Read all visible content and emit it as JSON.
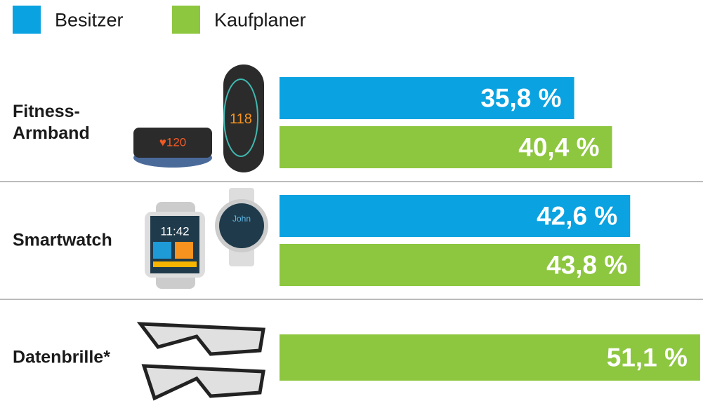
{
  "chart_data": {
    "type": "bar",
    "orientation": "horizontal",
    "categories": [
      "Fitness-\nArmband",
      "Smartwatch",
      "Datenbrille*"
    ],
    "series": [
      {
        "name": "Besitzer",
        "color": "#0aa2e0",
        "values": [
          35.8,
          42.6,
          null
        ],
        "value_labels": [
          "35,8 %",
          "42,6 %",
          null
        ]
      },
      {
        "name": "Kaufplaner",
        "color": "#8dc63f",
        "values": [
          40.4,
          43.8,
          51.1
        ],
        "value_labels": [
          "40,4 %",
          "43,8 %",
          "51,1 %"
        ]
      }
    ]
  }
}
